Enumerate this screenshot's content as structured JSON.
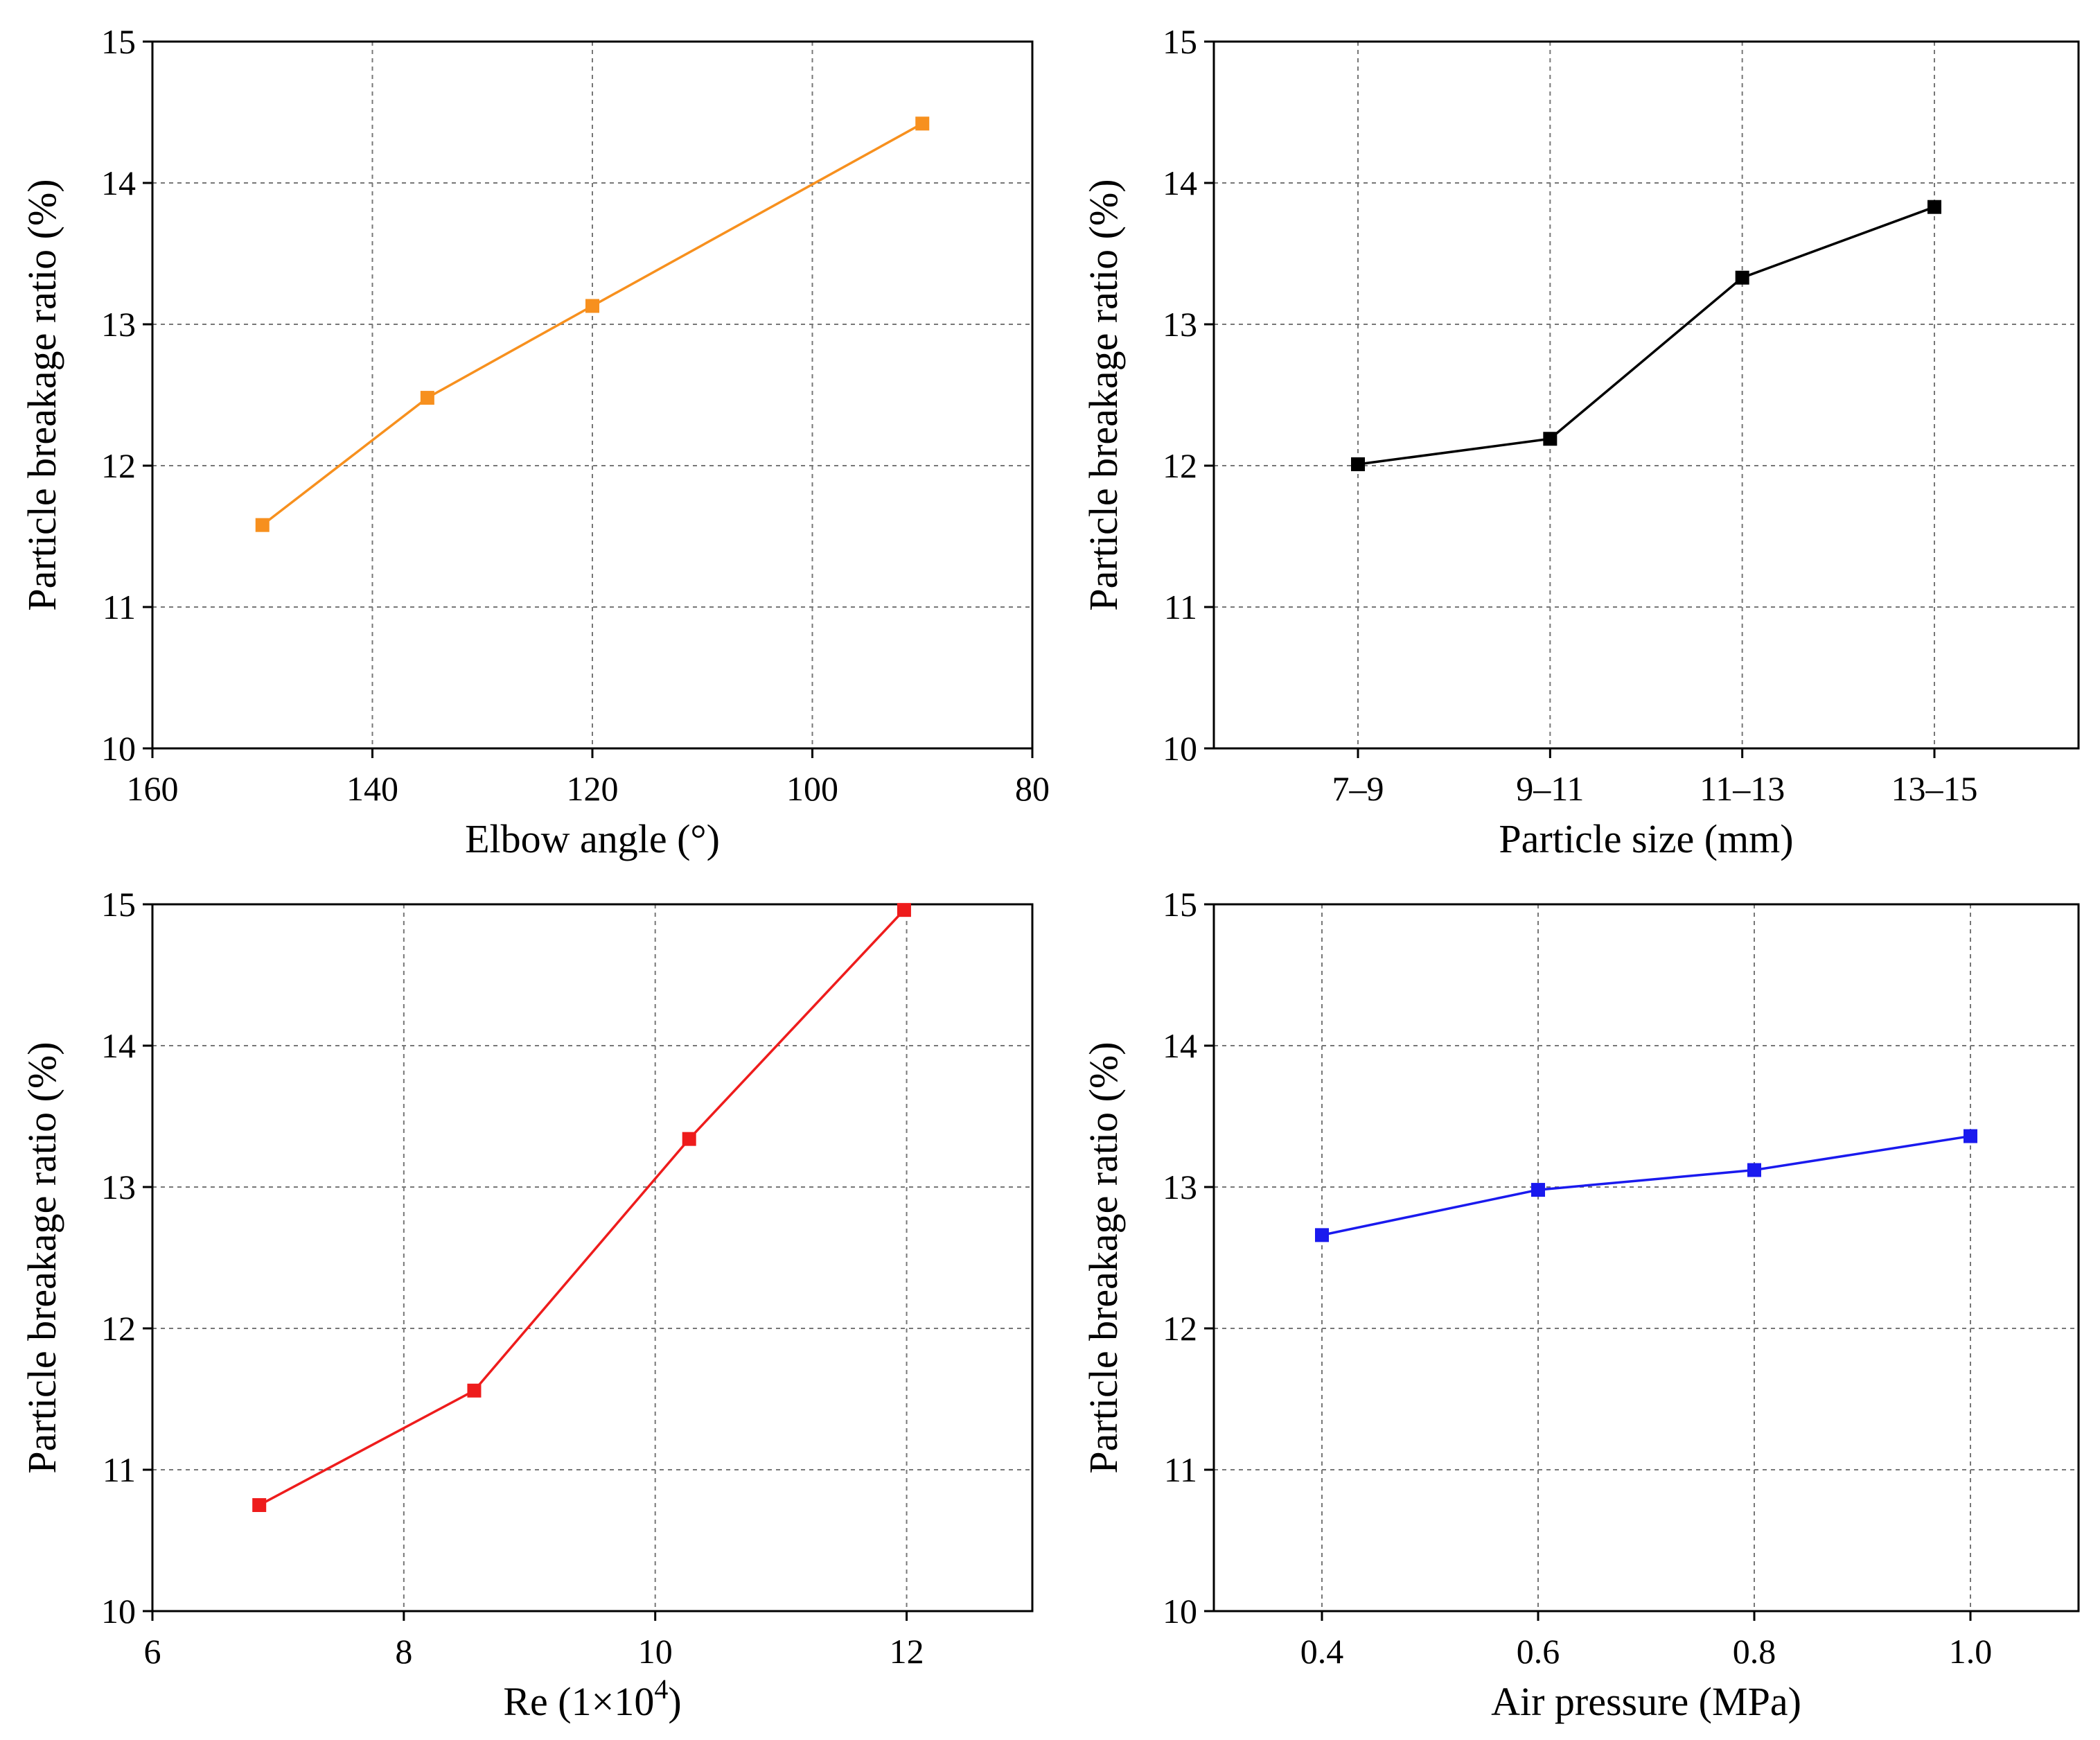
{
  "chart_data": [
    {
      "type": "line",
      "title": "",
      "xlabel": "Elbow angle (°)",
      "ylabel": "Particle breakage ratio (%)",
      "x_type": "numeric",
      "xlim": [
        160,
        80
      ],
      "ylim": [
        10,
        15
      ],
      "x_ticks": [
        160,
        140,
        120,
        100,
        80
      ],
      "x_tick_labels": [
        "160",
        "140",
        "120",
        "100",
        "80"
      ],
      "y_ticks": [
        10,
        11,
        12,
        13,
        14,
        15
      ],
      "y_tick_labels": [
        "10",
        "11",
        "12",
        "13",
        "14",
        "15"
      ],
      "grid": true,
      "series": [
        {
          "name": "Elbow angle",
          "color": "#f7901e",
          "x": [
            150,
            135,
            120,
            90
          ],
          "y": [
            11.58,
            12.48,
            13.13,
            14.42
          ]
        }
      ]
    },
    {
      "type": "line",
      "title": "",
      "xlabel": "Particle size (mm)",
      "ylabel": "Particle breakage ratio (%)",
      "x_type": "category",
      "categories": [
        "7–9",
        "9–11",
        "11–13",
        "13–15"
      ],
      "ylim": [
        10,
        15
      ],
      "y_ticks": [
        10,
        11,
        12,
        13,
        14,
        15
      ],
      "y_tick_labels": [
        "10",
        "11",
        "12",
        "13",
        "14",
        "15"
      ],
      "grid": true,
      "series": [
        {
          "name": "Particle size",
          "color": "#000000",
          "y": [
            12.01,
            12.19,
            13.33,
            13.83
          ]
        }
      ]
    },
    {
      "type": "line",
      "title": "",
      "xlabel": "Re (1×10",
      "xlabel_superscript": "4",
      "xlabel_suffix": ")",
      "ylabel": "Particle breakage ratio (%)",
      "x_type": "numeric",
      "xlim": [
        6,
        13
      ],
      "ylim": [
        10,
        15
      ],
      "x_ticks": [
        6,
        8,
        10,
        12
      ],
      "x_tick_labels": [
        "6",
        "8",
        "10",
        "12"
      ],
      "y_ticks": [
        10,
        11,
        12,
        13,
        14,
        15
      ],
      "y_tick_labels": [
        "10",
        "11",
        "12",
        "13",
        "14",
        "15"
      ],
      "grid": true,
      "series": [
        {
          "name": "Re",
          "color": "#ee1c1c",
          "x": [
            6.85,
            8.56,
            10.27,
            11.98
          ],
          "y": [
            10.75,
            11.56,
            13.34,
            14.96
          ]
        }
      ]
    },
    {
      "type": "line",
      "title": "",
      "xlabel": "Air pressure (MPa)",
      "ylabel": "Particle breakage ratio (%)",
      "x_type": "numeric",
      "xlim": [
        0.3,
        1.1
      ],
      "ylim": [
        10,
        15
      ],
      "x_ticks": [
        0.4,
        0.6,
        0.8,
        1.0
      ],
      "x_tick_labels": [
        "0.4",
        "0.6",
        "0.8",
        "1.0"
      ],
      "y_ticks": [
        10,
        11,
        12,
        13,
        14,
        15
      ],
      "y_tick_labels": [
        "10",
        "11",
        "12",
        "13",
        "14",
        "15"
      ],
      "grid": true,
      "series": [
        {
          "name": "Air pressure",
          "color": "#1a1aee",
          "x": [
            0.4,
            0.6,
            0.8,
            1.0
          ],
          "y": [
            12.66,
            12.98,
            13.12,
            13.36
          ]
        }
      ]
    }
  ]
}
